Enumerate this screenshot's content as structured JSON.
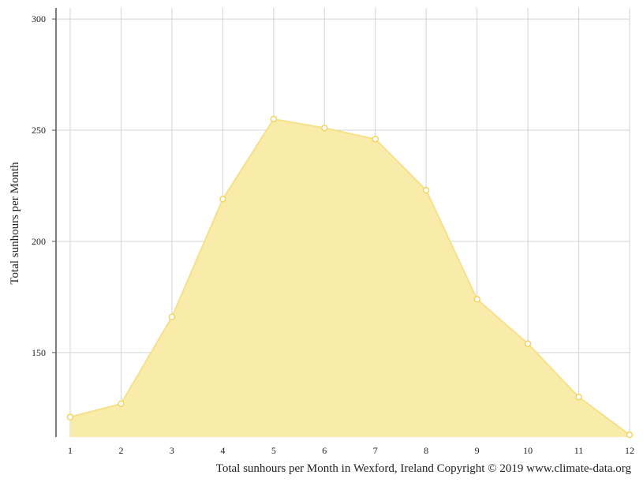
{
  "chart_data": {
    "type": "area",
    "x": [
      1,
      2,
      3,
      4,
      5,
      6,
      7,
      8,
      9,
      10,
      11,
      12
    ],
    "x_tick_labels": [
      "1",
      "2",
      "3",
      "4",
      "5",
      "6",
      "7",
      "8",
      "9",
      "10",
      "11",
      "12"
    ],
    "values": [
      121,
      127,
      166,
      219,
      255,
      251,
      246,
      223,
      174,
      154,
      130,
      113
    ],
    "xlim": [
      1,
      12
    ],
    "ylim": [
      112,
      305
    ],
    "y_ticks": [
      150,
      200,
      250,
      300
    ],
    "y_tick_labels": [
      "150",
      "200",
      "250",
      "300"
    ],
    "title": "",
    "xlabel": "",
    "ylabel": "Total sunhours per Month",
    "caption": "Total sunhours per Month in Wexford, Ireland Copyright © 2019 www.climate-data.org",
    "grid": true,
    "legend": "none",
    "colors": {
      "fill": "#f9eba9",
      "line": "#f6e08a",
      "marker_stroke": "#f2d45e",
      "marker_fill": "#ffffff",
      "grid": "#d3d3d3",
      "axis": "#555555"
    }
  }
}
